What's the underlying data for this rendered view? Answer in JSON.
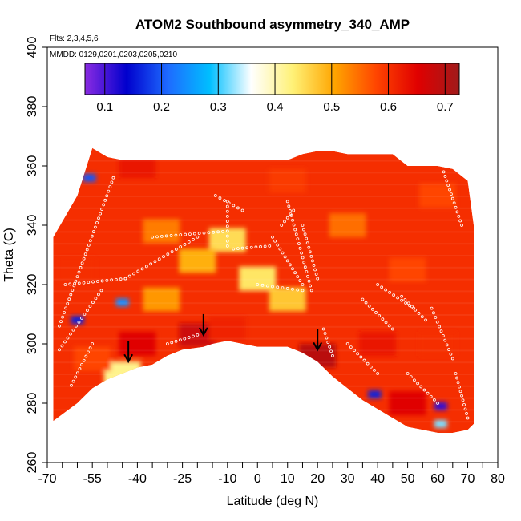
{
  "chart_data": {
    "type": "heatmap",
    "title": "ATOM2 Southbound asymmetry_340_AMP",
    "subtitle_lines": [
      "Flts: 2,3,4,5,6",
      "MMDD: 0129,0201,0203,0205,0210"
    ],
    "xlabel": "Latitude (deg N)",
    "ylabel": "Theta (C)",
    "xlim": [
      -70,
      80
    ],
    "ylim": [
      260,
      400
    ],
    "x_ticks": [
      -70,
      -55,
      -40,
      -25,
      -10,
      0,
      10,
      20,
      30,
      40,
      50,
      60,
      70,
      80
    ],
    "y_ticks": [
      260,
      280,
      300,
      320,
      340,
      360,
      380,
      400
    ],
    "colorbar": {
      "range": [
        0.065,
        0.725
      ],
      "ticks": [
        0.1,
        0.2,
        0.3,
        0.4,
        0.5,
        0.6,
        0.7
      ],
      "colors": [
        "#8a2be2",
        "#0000cd",
        "#1e6bff",
        "#00bfff",
        "#ffffff",
        "#fff176",
        "#ffa500",
        "#ff4500",
        "#e00000",
        "#a01b1b"
      ]
    },
    "colormap_stops": [
      [
        0.065,
        "#8a2be2"
      ],
      [
        0.12,
        "#0000cd"
      ],
      [
        0.22,
        "#1e6bff"
      ],
      [
        0.3,
        "#00bfff"
      ],
      [
        0.4,
        "#ffffff"
      ],
      [
        0.46,
        "#fff176"
      ],
      [
        0.53,
        "#ffa500"
      ],
      [
        0.6,
        "#ff4500"
      ],
      [
        0.66,
        "#e00000"
      ],
      [
        0.725,
        "#a01b1b"
      ]
    ],
    "data_envelope": {
      "lat": [
        -68,
        -60,
        -55,
        -50,
        -45,
        -40,
        -35,
        -30,
        -25,
        -18,
        -15,
        -10,
        -5,
        0,
        5,
        10,
        15,
        20,
        25,
        30,
        35,
        40,
        45,
        50,
        55,
        60,
        65,
        70,
        72
      ],
      "theta_min": [
        274,
        280,
        285,
        288,
        290,
        292,
        293,
        296,
        298,
        299,
        300,
        301,
        300,
        299,
        299,
        299,
        297,
        294,
        289,
        285,
        281,
        278,
        275,
        272,
        271,
        270,
        270,
        271,
        273
      ],
      "theta_max": [
        336,
        350,
        366,
        363,
        362,
        362,
        362,
        362,
        362,
        362,
        362,
        362,
        362,
        362,
        362,
        362,
        364,
        365,
        365,
        364,
        364,
        364,
        364,
        360,
        360,
        360,
        359,
        355,
        340
      ]
    },
    "cells": [
      {
        "lat": -56,
        "theta": 356,
        "value": 0.2
      },
      {
        "lat": -60,
        "theta": 308,
        "value": 0.15
      },
      {
        "lat": -45,
        "theta": 314,
        "value": 0.25
      },
      {
        "lat": -45,
        "theta": 290,
        "value": 0.45
      },
      {
        "lat": 39,
        "theta": 283,
        "value": 0.15
      },
      {
        "lat": 61,
        "theta": 279,
        "value": 0.1
      },
      {
        "lat": 61,
        "theta": 273,
        "value": 0.35
      },
      {
        "lat": 0,
        "theta": 322,
        "value": 0.47
      },
      {
        "lat": -10,
        "theta": 335,
        "value": 0.48
      },
      {
        "lat": 10,
        "theta": 315,
        "value": 0.5
      },
      {
        "lat": -20,
        "theta": 328,
        "value": 0.52
      },
      {
        "lat": -32,
        "theta": 315,
        "value": 0.54
      },
      {
        "lat": -32,
        "theta": 338,
        "value": 0.56
      },
      {
        "lat": 30,
        "theta": 340,
        "value": 0.57
      },
      {
        "lat": 50,
        "theta": 325,
        "value": 0.6
      },
      {
        "lat": 60,
        "theta": 300,
        "value": 0.62
      },
      {
        "lat": 40,
        "theta": 300,
        "value": 0.64
      },
      {
        "lat": -60,
        "theta": 325,
        "value": 0.62
      },
      {
        "lat": -55,
        "theta": 295,
        "value": 0.6
      },
      {
        "lat": -40,
        "theta": 300,
        "value": 0.66
      },
      {
        "lat": -20,
        "theta": 303,
        "value": 0.68
      },
      {
        "lat": -10,
        "theta": 305,
        "value": 0.63
      },
      {
        "lat": 20,
        "theta": 296,
        "value": 0.7
      },
      {
        "lat": 50,
        "theta": 280,
        "value": 0.66
      },
      {
        "lat": 10,
        "theta": 355,
        "value": 0.61
      },
      {
        "lat": -40,
        "theta": 360,
        "value": 0.64
      },
      {
        "lat": 60,
        "theta": 350,
        "value": 0.6
      }
    ],
    "arrows": [
      {
        "lat": -43,
        "theta": 294
      },
      {
        "lat": -18,
        "theta": 303
      },
      {
        "lat": 20,
        "theta": 298
      }
    ],
    "obs_tracks": [
      {
        "from": [
          -66,
          298
        ],
        "to": [
          -52,
          318
        ]
      },
      {
        "from": [
          -64,
          320
        ],
        "to": [
          -44,
          322
        ]
      },
      {
        "from": [
          -48,
          356
        ],
        "to": [
          -66,
          306
        ]
      },
      {
        "from": [
          -44,
          322
        ],
        "to": [
          -20,
          336
        ]
      },
      {
        "from": [
          -35,
          336
        ],
        "to": [
          -10,
          338
        ]
      },
      {
        "from": [
          -8,
          332
        ],
        "to": [
          4,
          333
        ]
      },
      {
        "from": [
          -14,
          350
        ],
        "to": [
          -5,
          345
        ]
      },
      {
        "from": [
          -10,
          348
        ],
        "to": [
          -10,
          333
        ]
      },
      {
        "from": [
          5,
          336
        ],
        "to": [
          15,
          320
        ]
      },
      {
        "from": [
          10,
          348
        ],
        "to": [
          18,
          318
        ]
      },
      {
        "from": [
          15,
          340
        ],
        "to": [
          20,
          322
        ]
      },
      {
        "from": [
          8,
          340
        ],
        "to": [
          12,
          345
        ]
      },
      {
        "from": [
          22,
          305
        ],
        "to": [
          25,
          296
        ]
      },
      {
        "from": [
          35,
          315
        ],
        "to": [
          45,
          305
        ]
      },
      {
        "from": [
          48,
          316
        ],
        "to": [
          56,
          308
        ]
      },
      {
        "from": [
          58,
          312
        ],
        "to": [
          65,
          295
        ]
      },
      {
        "from": [
          62,
          358
        ],
        "to": [
          68,
          340
        ]
      },
      {
        "from": [
          -30,
          300
        ],
        "to": [
          -20,
          303
        ]
      },
      {
        "from": [
          30,
          300
        ],
        "to": [
          40,
          290
        ]
      },
      {
        "from": [
          50,
          290
        ],
        "to": [
          60,
          280
        ]
      },
      {
        "from": [
          -62,
          286
        ],
        "to": [
          -55,
          300
        ]
      },
      {
        "from": [
          0,
          320
        ],
        "to": [
          15,
          318
        ]
      },
      {
        "from": [
          66,
          290
        ],
        "to": [
          70,
          275
        ]
      },
      {
        "from": [
          40,
          320
        ],
        "to": [
          52,
          312
        ]
      }
    ]
  }
}
